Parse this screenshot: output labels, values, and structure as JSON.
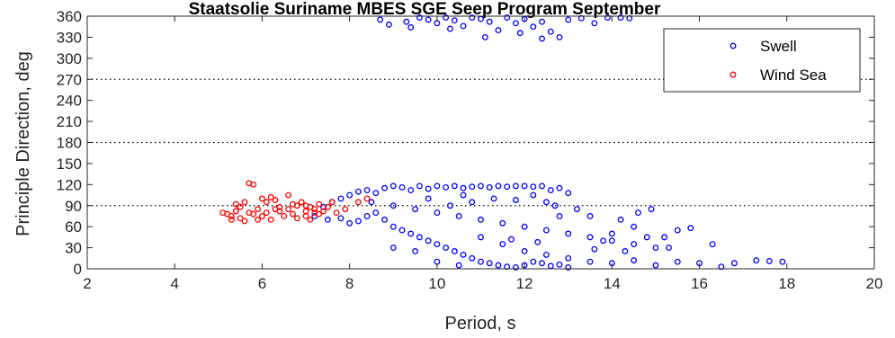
{
  "chart_data": {
    "type": "scatter",
    "title": "Staatsolie Suriname MBES SGE Seep Program September",
    "xlabel": "Period, s",
    "ylabel": "Principle Direction, deg",
    "xlim": [
      2,
      20
    ],
    "ylim": [
      0,
      360
    ],
    "xticks": [
      2,
      4,
      6,
      8,
      10,
      12,
      14,
      16,
      18,
      20
    ],
    "yticks": [
      0,
      30,
      60,
      90,
      120,
      150,
      180,
      210,
      240,
      270,
      300,
      330,
      360
    ],
    "reference_lines_y": [
      90,
      180,
      270
    ],
    "grid": false,
    "legend_position": "top-right",
    "series": [
      {
        "name": "Swell",
        "color": "#0000ff",
        "points": [
          [
            7.2,
            75
          ],
          [
            7.4,
            88
          ],
          [
            7.6,
            95
          ],
          [
            7.8,
            100
          ],
          [
            8.0,
            105
          ],
          [
            8.2,
            110
          ],
          [
            8.4,
            112
          ],
          [
            8.6,
            108
          ],
          [
            8.8,
            115
          ],
          [
            9.0,
            118
          ],
          [
            9.2,
            116
          ],
          [
            9.4,
            112
          ],
          [
            9.6,
            118
          ],
          [
            9.8,
            114
          ],
          [
            10.0,
            118
          ],
          [
            10.2,
            116
          ],
          [
            10.4,
            118
          ],
          [
            10.6,
            115
          ],
          [
            10.8,
            117
          ],
          [
            11.0,
            118
          ],
          [
            11.2,
            116
          ],
          [
            11.4,
            118
          ],
          [
            11.6,
            117
          ],
          [
            11.8,
            118
          ],
          [
            12.0,
            118
          ],
          [
            12.2,
            117
          ],
          [
            12.4,
            118
          ],
          [
            12.6,
            112
          ],
          [
            12.8,
            115
          ],
          [
            13.0,
            108
          ],
          [
            7.5,
            70
          ],
          [
            7.8,
            72
          ],
          [
            8.0,
            65
          ],
          [
            8.2,
            68
          ],
          [
            8.4,
            75
          ],
          [
            8.6,
            80
          ],
          [
            8.8,
            70
          ],
          [
            9.0,
            60
          ],
          [
            9.2,
            55
          ],
          [
            9.4,
            50
          ],
          [
            9.6,
            45
          ],
          [
            9.8,
            40
          ],
          [
            10.0,
            35
          ],
          [
            10.2,
            30
          ],
          [
            10.4,
            25
          ],
          [
            10.6,
            20
          ],
          [
            10.8,
            15
          ],
          [
            11.0,
            10
          ],
          [
            11.2,
            8
          ],
          [
            11.4,
            5
          ],
          [
            11.6,
            3
          ],
          [
            11.8,
            2
          ],
          [
            12.0,
            5
          ],
          [
            12.2,
            10
          ],
          [
            12.4,
            8
          ],
          [
            12.6,
            4
          ],
          [
            12.8,
            6
          ],
          [
            13.0,
            2
          ],
          [
            8.5,
            95
          ],
          [
            9.0,
            90
          ],
          [
            9.5,
            85
          ],
          [
            10.0,
            80
          ],
          [
            10.5,
            75
          ],
          [
            11.0,
            70
          ],
          [
            11.5,
            65
          ],
          [
            12.0,
            60
          ],
          [
            12.5,
            55
          ],
          [
            13.0,
            50
          ],
          [
            13.5,
            45
          ],
          [
            14.0,
            40
          ],
          [
            14.5,
            35
          ],
          [
            15.0,
            30
          ],
          [
            9.0,
            30
          ],
          [
            9.5,
            25
          ],
          [
            10.0,
            10
          ],
          [
            10.5,
            5
          ],
          [
            11.0,
            45
          ],
          [
            11.5,
            35
          ],
          [
            12.0,
            25
          ],
          [
            12.5,
            20
          ],
          [
            13.0,
            15
          ],
          [
            13.5,
            10
          ],
          [
            14.0,
            8
          ],
          [
            14.5,
            12
          ],
          [
            15.0,
            5
          ],
          [
            15.5,
            10
          ],
          [
            16.0,
            8
          ],
          [
            16.5,
            3
          ],
          [
            16.8,
            8
          ],
          [
            17.3,
            12
          ],
          [
            17.6,
            11
          ],
          [
            17.9,
            10
          ],
          [
            16.3,
            35
          ],
          [
            15.5,
            55
          ],
          [
            15.2,
            45
          ],
          [
            14.5,
            60
          ],
          [
            14.2,
            70
          ],
          [
            14.0,
            50
          ],
          [
            13.5,
            75
          ],
          [
            13.2,
            85
          ],
          [
            12.8,
            75
          ],
          [
            12.5,
            95
          ],
          [
            13.8,
            40
          ],
          [
            14.8,
            45
          ],
          [
            14.9,
            85
          ],
          [
            14.6,
            80
          ],
          [
            15.8,
            58
          ],
          [
            15.3,
            30
          ],
          [
            14.3,
            25
          ],
          [
            13.6,
            28
          ],
          [
            12.3,
            38
          ],
          [
            11.7,
            42
          ],
          [
            10.3,
            90
          ],
          [
            10.8,
            95
          ],
          [
            11.3,
            100
          ],
          [
            11.8,
            98
          ],
          [
            12.2,
            105
          ],
          [
            12.7,
            90
          ],
          [
            9.8,
            100
          ],
          [
            10.6,
            105
          ],
          [
            8.7,
            355
          ],
          [
            8.9,
            348
          ],
          [
            9.3,
            352
          ],
          [
            9.6,
            358
          ],
          [
            9.8,
            355
          ],
          [
            10.0,
            350
          ],
          [
            10.2,
            358
          ],
          [
            10.4,
            354
          ],
          [
            10.6,
            346
          ],
          [
            10.8,
            358
          ],
          [
            11.0,
            356
          ],
          [
            11.2,
            352
          ],
          [
            11.4,
            340
          ],
          [
            11.6,
            358
          ],
          [
            11.8,
            350
          ],
          [
            12.0,
            356
          ],
          [
            12.2,
            345
          ],
          [
            12.4,
            352
          ],
          [
            12.6,
            338
          ],
          [
            12.8,
            330
          ],
          [
            13.0,
            355
          ],
          [
            13.3,
            357
          ],
          [
            13.6,
            350
          ],
          [
            13.9,
            358
          ],
          [
            14.2,
            358
          ],
          [
            14.4,
            357
          ],
          [
            11.1,
            330
          ],
          [
            12.4,
            328
          ],
          [
            10.3,
            342
          ],
          [
            11.9,
            336
          ],
          [
            9.4,
            344
          ]
        ]
      },
      {
        "name": "Wind Sea",
        "color": "#ff0000",
        "points": [
          [
            5.1,
            80
          ],
          [
            5.2,
            78
          ],
          [
            5.3,
            75
          ],
          [
            5.4,
            82
          ],
          [
            5.5,
            72
          ],
          [
            5.5,
            88
          ],
          [
            5.6,
            95
          ],
          [
            5.7,
            80
          ],
          [
            5.7,
            122
          ],
          [
            5.8,
            120
          ],
          [
            5.8,
            78
          ],
          [
            5.9,
            85
          ],
          [
            6.0,
            100
          ],
          [
            6.0,
            75
          ],
          [
            6.1,
            80
          ],
          [
            6.2,
            70
          ],
          [
            6.2,
            102
          ],
          [
            6.3,
            98
          ],
          [
            6.4,
            82
          ],
          [
            6.4,
            88
          ],
          [
            6.5,
            75
          ],
          [
            6.6,
            85
          ],
          [
            6.6,
            105
          ],
          [
            6.7,
            78
          ],
          [
            6.8,
            90
          ],
          [
            6.8,
            72
          ],
          [
            6.9,
            95
          ],
          [
            7.0,
            82
          ],
          [
            7.0,
            75
          ],
          [
            7.1,
            88
          ],
          [
            7.2,
            85
          ],
          [
            7.2,
            80
          ],
          [
            7.3,
            92
          ],
          [
            7.3,
            78
          ],
          [
            7.4,
            82
          ],
          [
            7.5,
            88
          ],
          [
            7.1,
            70
          ],
          [
            5.3,
            70
          ],
          [
            5.6,
            68
          ],
          [
            6.1,
            95
          ],
          [
            7.6,
            95
          ],
          [
            7.0,
            90
          ],
          [
            8.4,
            100
          ],
          [
            8.2,
            95
          ],
          [
            7.9,
            85
          ],
          [
            5.4,
            92
          ],
          [
            5.9,
            70
          ],
          [
            6.3,
            85
          ],
          [
            6.7,
            92
          ],
          [
            7.7,
            80
          ]
        ]
      }
    ]
  }
}
